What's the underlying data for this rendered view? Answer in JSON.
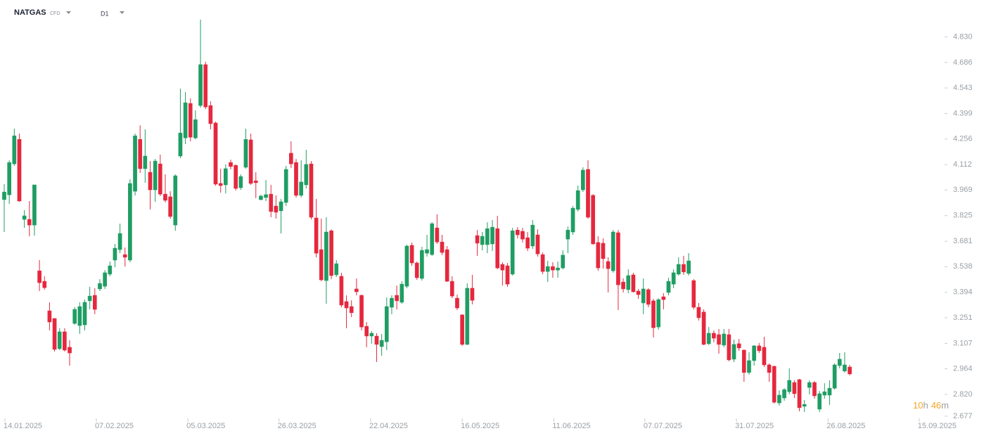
{
  "chart_data": {
    "type": "candlestick",
    "symbol": "NATGAS",
    "instrument_type": "CFD",
    "timeframe": "D1",
    "timer_parts": [
      "10",
      "h",
      "46",
      "m"
    ],
    "up_color": "#1f9d63",
    "down_color": "#e5283e",
    "xlim": [
      -0.84,
      186.44
    ],
    "xticks": [
      {
        "value": 0.14,
        "label": "14.01.2025"
      },
      {
        "value": 18.3,
        "label": "07.02.2025"
      },
      {
        "value": 36.5,
        "label": "05.03.2025"
      },
      {
        "value": 54.6,
        "label": "26.03.2025"
      },
      {
        "value": 72.8,
        "label": "22.04.2025"
      },
      {
        "value": 91.0,
        "label": "16.05.2025"
      },
      {
        "value": 109.2,
        "label": "11.06.2025"
      },
      {
        "value": 127.3,
        "label": "07.07.2025"
      },
      {
        "value": 145.5,
        "label": "31.07.2025"
      },
      {
        "value": 163.7,
        "label": "26.08.2025"
      },
      {
        "value": 181.8,
        "label": "15.09.2025"
      }
    ],
    "ylim": [
      2.65,
      4.95
    ],
    "yticks": [
      {
        "value": 4.83,
        "label": "4.830"
      },
      4.686,
      4.543,
      4.399,
      4.256,
      4.112,
      3.969,
      3.825,
      3.681,
      3.538,
      3.394,
      3.251,
      3.107,
      2.964,
      {
        "value": 2.82,
        "label": "2.820"
      },
      2.677
    ],
    "open": [
      3.915,
      3.942,
      4.116,
      4.254,
      3.804,
      3.804,
      3.772,
      3.515,
      3.456,
      3.29,
      3.247,
      3.077,
      3.172,
      3.085,
      3.219,
      3.207,
      3.211,
      3.346,
      3.377,
      3.413,
      3.428,
      3.496,
      3.575,
      3.634,
      3.606,
      3.575,
      3.962,
      4.254,
      4.089,
      4.069,
      3.97,
      4.116,
      3.946,
      3.931,
      3.772,
      4.16,
      4.262,
      4.456,
      4.262,
      4.444,
      4.674,
      4.444,
      4.346,
      4.006,
      3.998,
      4.124,
      4.108,
      3.982,
      4.097,
      4.251,
      4.021,
      3.915,
      3.927,
      3.946,
      3.879,
      3.852,
      3.899,
      4.176,
      4.124,
      3.939,
      3.998,
      4.116,
      3.812,
      3.634,
      3.46,
      3.74,
      3.492,
      3.484,
      3.342,
      3.314,
      3.413,
      3.377,
      3.203,
      3.148,
      3.148,
      3.089,
      3.116,
      3.31,
      3.377,
      3.338,
      3.428,
      3.658,
      3.559,
      3.472,
      3.614,
      3.606,
      3.756,
      3.677,
      3.634,
      3.456,
      3.361,
      3.267,
      3.101,
      3.417,
      3.713,
      3.662,
      3.662,
      3.666,
      3.752,
      3.551,
      3.543,
      3.496,
      3.744,
      3.737,
      3.701,
      3.654,
      3.717,
      3.606,
      3.511,
      3.539,
      3.519,
      3.531,
      3.693,
      3.733,
      3.86,
      3.97,
      4.085,
      3.939,
      3.674,
      3.67,
      3.567,
      3.515,
      3.729,
      3.452,
      3.409,
      3.492,
      3.401,
      3.334,
      3.409,
      3.346,
      3.199,
      3.369,
      3.393,
      3.44,
      3.496,
      3.551,
      3.5,
      3.46,
      3.31,
      3.283,
      3.105,
      3.164,
      3.156,
      3.097,
      3.156,
      3.018,
      3.105,
      3.069,
      2.943,
      3.01,
      3.093,
      3.085,
      2.986,
      2.978,
      2.772,
      2.8,
      2.835,
      2.887,
      2.903,
      2.753,
      2.859,
      2.887,
      2.737,
      2.816,
      2.816,
      2.855,
      2.982,
      2.951,
      2.974
    ],
    "high": [
      4.002,
      4.136,
      4.314,
      4.286,
      3.856,
      3.907,
      3.998,
      3.575,
      3.484,
      3.338,
      3.247,
      3.192,
      3.192,
      3.124,
      3.31,
      3.338,
      3.353,
      3.425,
      3.417,
      3.468,
      3.519,
      3.567,
      3.666,
      3.78,
      3.646,
      4.029,
      4.286,
      4.333,
      4.31,
      4.132,
      4.144,
      4.168,
      4.057,
      3.962,
      4.057,
      4.539,
      4.52,
      4.484,
      4.417,
      4.927,
      4.69,
      4.468,
      4.353,
      4.089,
      4.113,
      4.14,
      4.113,
      4.057,
      4.314,
      4.286,
      4.069,
      3.943,
      4.025,
      3.998,
      3.939,
      3.919,
      4.105,
      4.243,
      4.144,
      4.136,
      4.195,
      4.132,
      3.919,
      3.808,
      3.816,
      3.748,
      3.575,
      3.504,
      3.377,
      3.349,
      3.472,
      3.381,
      3.227,
      3.176,
      3.164,
      3.16,
      3.365,
      3.377,
      3.432,
      3.456,
      3.662,
      3.674,
      3.567,
      3.65,
      3.717,
      3.788,
      3.832,
      3.717,
      3.654,
      3.484,
      3.381,
      3.271,
      3.444,
      3.492,
      3.744,
      3.733,
      3.788,
      3.8,
      3.824,
      3.563,
      3.559,
      3.756,
      3.76,
      3.756,
      3.733,
      3.8,
      3.748,
      3.618,
      3.571,
      3.563,
      3.567,
      3.63,
      3.764,
      3.879,
      3.994,
      4.097,
      4.136,
      3.946,
      3.709,
      3.697,
      3.591,
      3.744,
      3.744,
      3.472,
      3.523,
      3.504,
      3.413,
      3.472,
      3.417,
      3.357,
      3.361,
      3.389,
      3.476,
      3.523,
      3.591,
      3.599,
      3.614,
      3.468,
      3.334,
      3.298,
      3.199,
      3.18,
      3.188,
      3.188,
      3.188,
      3.128,
      3.132,
      3.073,
      3.057,
      3.097,
      3.109,
      3.144,
      2.994,
      2.982,
      2.843,
      2.855,
      2.966,
      2.899,
      2.907,
      2.788,
      2.899,
      2.895,
      2.839,
      2.883,
      2.899,
      2.994,
      3.053,
      3.057,
      2.986
    ],
    "low": [
      3.733,
      3.891,
      4.105,
      3.903,
      3.756,
      3.709,
      3.713,
      3.401,
      3.409,
      3.18,
      3.061,
      3.069,
      3.061,
      2.982,
      3.211,
      3.16,
      3.18,
      3.298,
      3.271,
      3.401,
      3.413,
      3.484,
      3.535,
      3.614,
      3.539,
      3.563,
      3.938,
      4.065,
      4.01,
      3.86,
      3.903,
      3.935,
      3.899,
      3.808,
      3.74,
      4.148,
      4.227,
      4.243,
      4.254,
      4.432,
      4.424,
      4.31,
      3.994,
      3.954,
      3.95,
      4.085,
      3.966,
      3.97,
      4.089,
      3.998,
      3.923,
      3.911,
      3.907,
      3.816,
      3.808,
      3.725,
      3.879,
      4.093,
      3.927,
      3.927,
      3.978,
      3.804,
      3.591,
      3.456,
      3.33,
      3.468,
      3.48,
      3.31,
      3.192,
      3.255,
      3.377,
      3.18,
      3.085,
      3.105,
      3.002,
      3.037,
      3.069,
      3.271,
      3.298,
      3.33,
      3.417,
      3.543,
      3.464,
      3.46,
      3.595,
      3.599,
      3.666,
      3.603,
      3.452,
      3.361,
      3.294,
      3.093,
      3.097,
      3.326,
      3.599,
      3.63,
      3.614,
      3.626,
      3.523,
      3.432,
      3.425,
      3.488,
      3.697,
      3.674,
      3.626,
      3.638,
      3.595,
      3.496,
      3.452,
      3.476,
      3.476,
      3.523,
      3.614,
      3.717,
      3.848,
      3.958,
      3.808,
      3.662,
      3.515,
      3.527,
      3.393,
      3.504,
      3.294,
      3.393,
      3.389,
      3.393,
      3.357,
      3.271,
      3.31,
      3.14,
      3.184,
      3.298,
      3.377,
      3.417,
      3.488,
      3.492,
      3.488,
      3.298,
      3.235,
      3.097,
      3.097,
      3.113,
      3.049,
      3.085,
      3.006,
      3.002,
      3.065,
      2.891,
      2.931,
      2.982,
      3.053,
      2.974,
      2.891,
      2.768,
      2.757,
      2.784,
      2.82,
      2.8,
      2.725,
      2.721,
      2.82,
      2.796,
      2.721,
      2.796,
      2.761,
      2.847,
      2.966,
      2.943,
      2.927
    ],
    "close": [
      3.958,
      4.124,
      4.274,
      3.907,
      3.824,
      3.772,
      3.998,
      3.448,
      3.42,
      3.227,
      3.073,
      3.172,
      3.069,
      3.053,
      3.298,
      3.314,
      3.338,
      3.373,
      3.298,
      3.444,
      3.504,
      3.543,
      3.642,
      3.725,
      3.591,
      4.006,
      4.274,
      4.089,
      4.16,
      3.97,
      4.132,
      3.946,
      3.911,
      3.82,
      4.049,
      4.29,
      4.46,
      4.266,
      4.365,
      4.674,
      4.436,
      4.342,
      4.002,
      3.994,
      4.089,
      4.101,
      3.978,
      4.045,
      4.254,
      4.006,
      4.01,
      3.935,
      3.943,
      3.848,
      3.844,
      3.903,
      4.085,
      4.116,
      3.939,
      4.014,
      4.113,
      3.816,
      3.614,
      3.464,
      3.733,
      3.488,
      3.555,
      3.322,
      3.306,
      3.279,
      3.397,
      3.199,
      3.148,
      3.164,
      3.101,
      3.124,
      3.314,
      3.361,
      3.346,
      3.44,
      3.654,
      3.559,
      3.476,
      3.63,
      3.634,
      3.78,
      3.677,
      3.618,
      3.456,
      3.373,
      3.306,
      3.101,
      3.417,
      3.349,
      3.67,
      3.709,
      3.752,
      3.76,
      3.531,
      3.519,
      3.44,
      3.74,
      3.717,
      3.693,
      3.642,
      3.772,
      3.61,
      3.511,
      3.539,
      3.519,
      3.531,
      3.603,
      3.744,
      3.867,
      3.966,
      4.081,
      3.816,
      3.666,
      3.531,
      3.583,
      3.527,
      3.733,
      3.436,
      3.413,
      3.488,
      3.397,
      3.381,
      3.413,
      3.326,
      3.195,
      3.353,
      3.353,
      3.456,
      3.504,
      3.551,
      3.508,
      3.571,
      3.31,
      3.251,
      3.101,
      3.164,
      3.136,
      3.101,
      3.16,
      3.014,
      3.101,
      3.081,
      2.943,
      3.01,
      3.093,
      3.065,
      2.986,
      2.943,
      2.776,
      2.816,
      2.847,
      2.899,
      2.824,
      2.745,
      2.764,
      2.887,
      2.812,
      2.824,
      2.835,
      2.855,
      2.986,
      3.018,
      2.986,
      2.935
    ]
  }
}
